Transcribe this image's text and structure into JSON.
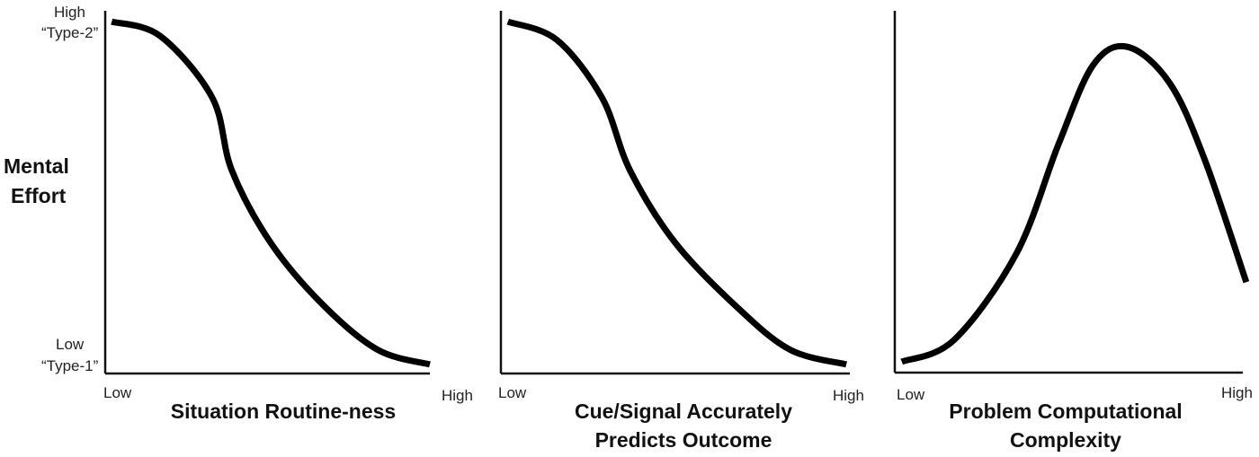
{
  "y_axis": {
    "label_line1": "Mental",
    "label_line2": "Effort",
    "high_label": "High",
    "high_sublabel": "“Type-2”",
    "low_label": "Low",
    "low_sublabel": "“Type-1”"
  },
  "chart_data": [
    {
      "type": "line",
      "xlabel": "Situation Routine-ness",
      "x_tick_low": "Low",
      "x_tick_high": "High",
      "ylabel": "Mental Effort",
      "xlim": [
        0,
        1
      ],
      "ylim": [
        0,
        1
      ],
      "points": [
        [
          0.02,
          0.97
        ],
        [
          0.17,
          0.93
        ],
        [
          0.33,
          0.76
        ],
        [
          0.39,
          0.56
        ],
        [
          0.51,
          0.36
        ],
        [
          0.67,
          0.19
        ],
        [
          0.84,
          0.065
        ],
        [
          1.0,
          0.025
        ]
      ],
      "color": "#000000"
    },
    {
      "type": "line",
      "xlabel_line1": "Cue/Signal Accurately",
      "xlabel_line2": "Predicts Outcome",
      "x_tick_low": "Low",
      "x_tick_high": "High",
      "xlim": [
        0,
        1
      ],
      "ylim": [
        0,
        1
      ],
      "points": [
        [
          0.02,
          0.97
        ],
        [
          0.16,
          0.92
        ],
        [
          0.29,
          0.76
        ],
        [
          0.37,
          0.56
        ],
        [
          0.5,
          0.36
        ],
        [
          0.68,
          0.18
        ],
        [
          0.83,
          0.065
        ],
        [
          0.99,
          0.025
        ]
      ],
      "color": "#000000"
    },
    {
      "type": "line",
      "xlabel_line1": "Problem Computational",
      "xlabel_line2": "Complexity",
      "x_tick_low": "Low",
      "x_tick_high": "High",
      "xlim": [
        0,
        1
      ],
      "ylim": [
        0,
        1
      ],
      "points": [
        [
          0.02,
          0.03
        ],
        [
          0.17,
          0.09
        ],
        [
          0.35,
          0.33
        ],
        [
          0.47,
          0.63
        ],
        [
          0.57,
          0.85
        ],
        [
          0.67,
          0.9
        ],
        [
          0.79,
          0.8
        ],
        [
          0.89,
          0.59
        ],
        [
          1.01,
          0.25
        ]
      ],
      "color": "#000000"
    }
  ]
}
